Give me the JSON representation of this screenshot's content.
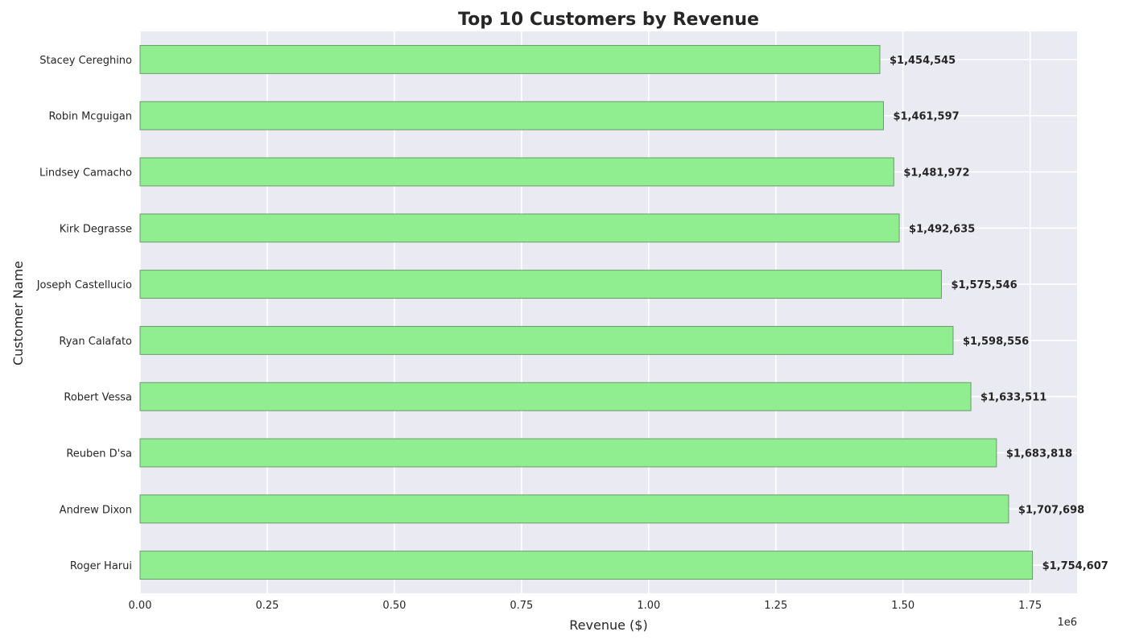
{
  "chart_data": {
    "type": "bar",
    "orientation": "horizontal",
    "title": "Top 10 Customers by Revenue",
    "xlabel": "Revenue ($)",
    "ylabel": "Customer Name",
    "x_offset_label": "1e6",
    "categories": [
      "Roger Harui",
      "Andrew Dixon",
      "Reuben D'sa",
      "Robert Vessa",
      "Ryan Calafato",
      "Joseph Castellucio",
      "Kirk Degrasse",
      "Lindsey Camacho",
      "Robin Mcguigan",
      "Stacey Cereghino"
    ],
    "values": [
      1754607,
      1707698,
      1683818,
      1633511,
      1598556,
      1575546,
      1492635,
      1481972,
      1461597,
      1454545
    ],
    "value_labels": [
      "$1,754,607",
      "$1,707,698",
      "$1,683,818",
      "$1,633,511",
      "$1,598,556",
      "$1,575,546",
      "$1,492,635",
      "$1,481,972",
      "$1,461,597",
      "$1,454,545"
    ],
    "xlim": [
      0,
      1842337
    ],
    "xticks": [
      0,
      250000,
      500000,
      750000,
      1000000,
      1250000,
      1500000,
      1750000
    ],
    "xtick_labels": [
      "0.00",
      "0.25",
      "0.50",
      "0.75",
      "1.00",
      "1.25",
      "1.50",
      "1.75"
    ],
    "grid": true,
    "colors": {
      "bar_fill": "#90ee90",
      "bar_edge": "#6a9a6a",
      "plot_bg": "#eaeaf2",
      "grid": "#ffffff",
      "text": "#262626"
    }
  }
}
